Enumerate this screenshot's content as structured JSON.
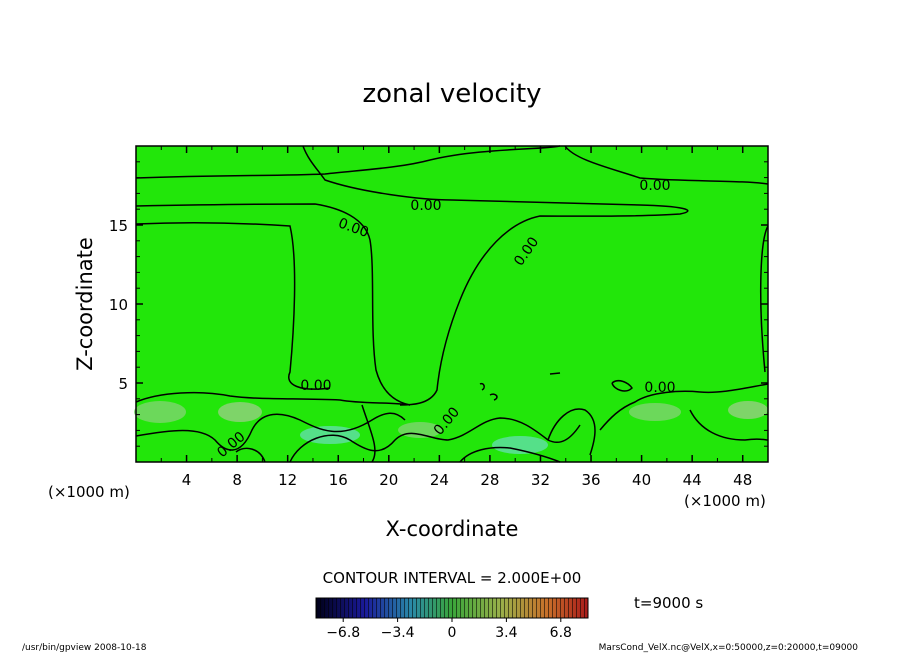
{
  "chart_data": {
    "type": "heatmap",
    "title": "zonal velocity",
    "xlabel": "X-coordinate",
    "ylabel": "Z-coordinate",
    "x_unit": "(×1000 m)",
    "y_unit": "(×1000 m)",
    "xlim": [
      0,
      50
    ],
    "ylim": [
      0,
      20
    ],
    "x_ticks": [
      4,
      8,
      12,
      16,
      20,
      24,
      28,
      32,
      36,
      40,
      44,
      48
    ],
    "y_ticks": [
      5,
      10,
      15
    ],
    "contour_labels": [
      "0.00",
      "0.00",
      "0.00",
      "0.00",
      "0.00",
      "0.00",
      "0.00",
      "0.00"
    ],
    "contour_interval_text": "CONTOUR INTERVAL = 2.000E+00",
    "colorbar": {
      "ticks": [
        "−6.8",
        "−3.4",
        "0",
        "3.4",
        "6.8"
      ],
      "range": [
        -8.5,
        8.5
      ]
    },
    "time_label": "t=9000 s",
    "footer_left": "/usr/bin/gpview   2008-10-18",
    "footer_right": "MarsCond_VelX.nc@VelX,x=0:50000,z=0:20000,t=09000",
    "colors": {
      "field": "#22e60a",
      "line": "#000000"
    }
  }
}
